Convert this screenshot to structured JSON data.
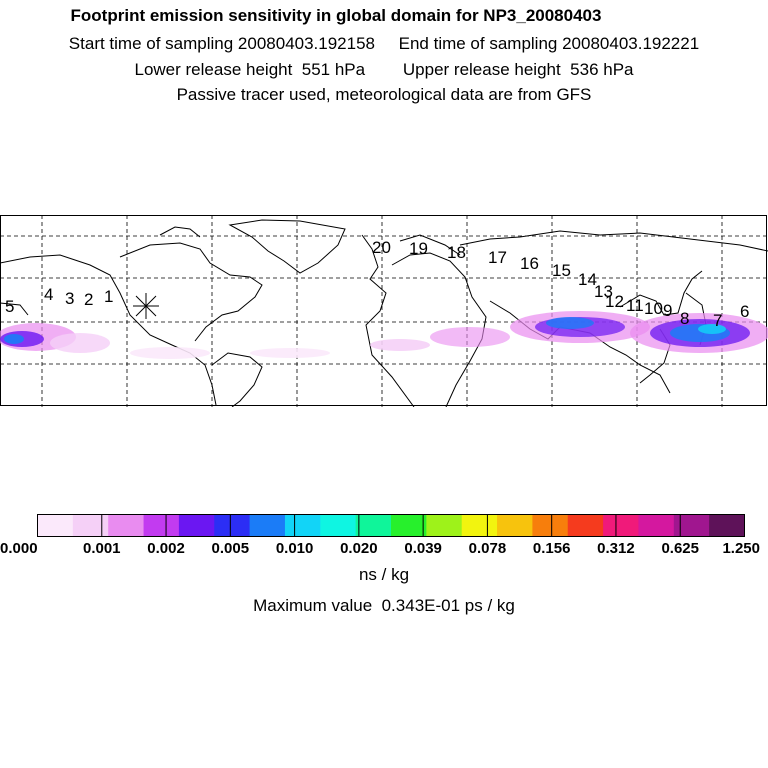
{
  "header": {
    "title": "Footprint emission sensitivity in global domain for NP3_20080403",
    "sampling": "Start time of sampling 20080403.192158     End time of sampling 20080403.192221",
    "release": "Lower release height  551 hPa        Upper release height  536 hPa",
    "note": "Passive tracer used, meteorological data are from GFS"
  },
  "map": {
    "labels": [
      "1",
      "2",
      "3",
      "4",
      "5",
      "6",
      "7",
      "8",
      "9",
      "10",
      "11",
      "12",
      "13",
      "14",
      "15",
      "16",
      "17",
      "18",
      "19",
      "20"
    ],
    "release_marker": "asterisk-icon"
  },
  "colorbar": {
    "ticks": [
      "0.000",
      "0.001",
      "0.002",
      "0.005",
      "0.010",
      "0.020",
      "0.039",
      "0.078",
      "0.156",
      "0.312",
      "0.625",
      "1.250"
    ],
    "colors": [
      "#fbe9fb",
      "#f5d0f7",
      "#e98cf0",
      "#c23bf0",
      "#6b17f2",
      "#2c2ef5",
      "#1b7cf7",
      "#12d4f7",
      "#0ff5e2",
      "#0ff59a",
      "#27f02c",
      "#9ef21a",
      "#f2f40f",
      "#f7c30d",
      "#f77e0c",
      "#f53b1e",
      "#f01a7a",
      "#d4189f",
      "#a0168f",
      "#5e1259"
    ],
    "units": "ns / kg",
    "maximum": "Maximum value  0.343E-01 ps / kg"
  }
}
